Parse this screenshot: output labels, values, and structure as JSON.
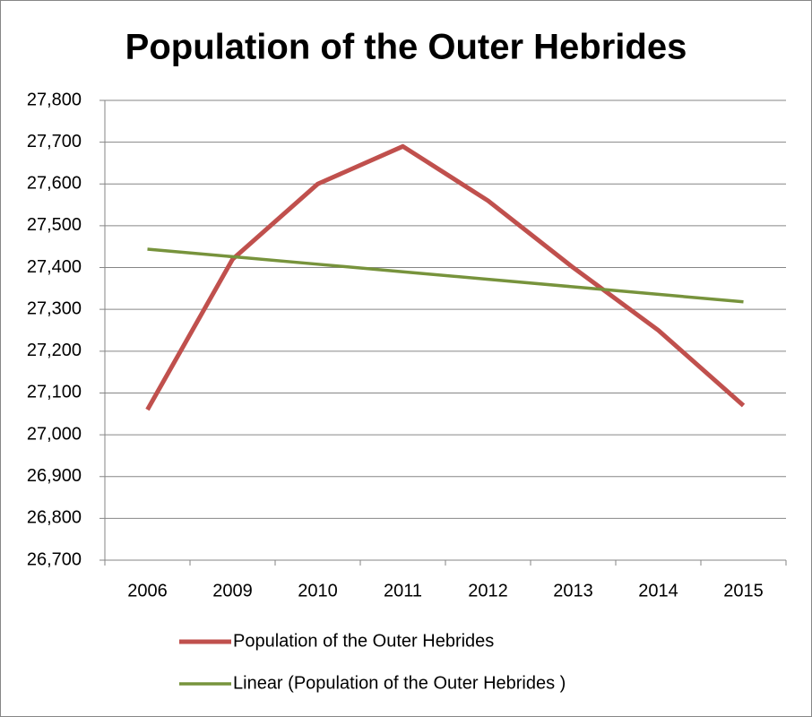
{
  "chart_data": {
    "type": "line",
    "title": "Population of the Outer Hebrides",
    "categories": [
      "2006",
      "2009",
      "2010",
      "2011",
      "2012",
      "2013",
      "2014",
      "2015"
    ],
    "series": [
      {
        "name": "Population of the Outer Hebrides",
        "color": "#c0504d",
        "values": [
          27060,
          27420,
          27600,
          27690,
          27560,
          27400,
          27250,
          27070
        ]
      },
      {
        "name": "Linear (Population of the Outer Hebrides )",
        "color": "#77933c",
        "values": [
          27444,
          27426,
          27408,
          27390,
          27372,
          27354,
          27336,
          27318
        ]
      }
    ],
    "ylim": [
      26700,
      27800
    ],
    "yticks": [
      {
        "value": 26700,
        "label": "26,700"
      },
      {
        "value": 26800,
        "label": "26,800"
      },
      {
        "value": 26900,
        "label": "26,900"
      },
      {
        "value": 27000,
        "label": "27,000"
      },
      {
        "value": 27100,
        "label": "27,100"
      },
      {
        "value": 27200,
        "label": "27,200"
      },
      {
        "value": 27300,
        "label": "27,300"
      },
      {
        "value": 27400,
        "label": "27,400"
      },
      {
        "value": 27500,
        "label": "27,500"
      },
      {
        "value": 27600,
        "label": "27,600"
      },
      {
        "value": 27700,
        "label": "27,700"
      },
      {
        "value": 27800,
        "label": "27,800"
      }
    ],
    "grid": true
  }
}
